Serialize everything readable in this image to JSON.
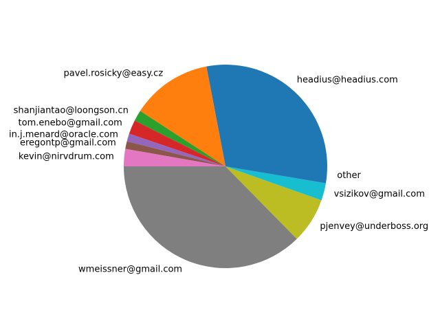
{
  "chart_data": {
    "type": "pie",
    "labels": [
      "headius@headius.com",
      "pavel.rosicky@easy.cz",
      "shanjiantao@loongson.cn",
      "tom.enebo@gmail.com",
      "in.j.menard@oracle.com",
      "eregontp@gmail.com",
      "kevin@nirvdrum.com",
      "wmeissner@gmail.com",
      "pjenvey@underboss.org",
      "vsizikov@gmail.com",
      "other"
    ],
    "values": [
      27.5,
      12.6,
      1.7,
      2.2,
      1.2,
      1.2,
      2.7,
      36.7,
      7.1,
      2.7,
      2.6
    ],
    "colors": [
      "#1f77b4",
      "#ff7f0e",
      "#2ca02c",
      "#d62728",
      "#9467bd",
      "#8c564b",
      "#e377c2",
      "#7f7f7f",
      "#bcbd22",
      "#17becf",
      "#1f77b4"
    ],
    "start_angle_deg": 0,
    "direction": "counterclockwise",
    "title": "",
    "legend": "none"
  }
}
